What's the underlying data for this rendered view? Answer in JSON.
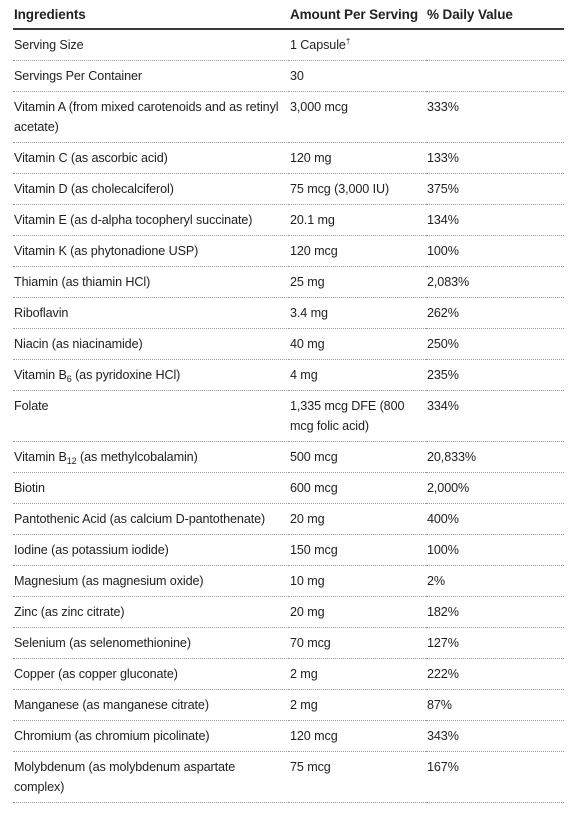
{
  "header": {
    "col_ingredient": "Ingredients",
    "col_amount": "Amount Per Serving",
    "col_dv": "% Daily Value"
  },
  "rows": [
    {
      "pre": "Serving Size",
      "sub": "",
      "post": "",
      "amount": "1 Capsule",
      "sup": "†",
      "dv": ""
    },
    {
      "pre": "Servings Per Container",
      "sub": "",
      "post": "",
      "amount": "30",
      "sup": "",
      "dv": ""
    },
    {
      "pre": "Vitamin A (from mixed carotenoids and as retinyl acetate)",
      "sub": "",
      "post": "",
      "amount": "3,000 mcg",
      "sup": "",
      "dv": "333%"
    },
    {
      "pre": "Vitamin C (as ascorbic acid)",
      "sub": "",
      "post": "",
      "amount": "120 mg",
      "sup": "",
      "dv": "133%"
    },
    {
      "pre": "Vitamin D (as cholecalciferol)",
      "sub": "",
      "post": "",
      "amount": "75 mcg (3,000 IU)",
      "sup": "",
      "dv": "375%"
    },
    {
      "pre": "Vitamin E (as d-alpha tocopheryl succinate)",
      "sub": "",
      "post": "",
      "amount": "20.1 mg",
      "sup": "",
      "dv": "134%"
    },
    {
      "pre": "Vitamin K (as phytonadione USP)",
      "sub": "",
      "post": "",
      "amount": "120 mcg",
      "sup": "",
      "dv": "100%"
    },
    {
      "pre": "Thiamin (as thiamin HCl)",
      "sub": "",
      "post": "",
      "amount": "25 mg",
      "sup": "",
      "dv": "2,083%"
    },
    {
      "pre": "Riboflavin",
      "sub": "",
      "post": "",
      "amount": "3.4 mg",
      "sup": "",
      "dv": "262%"
    },
    {
      "pre": "Niacin (as niacinamide)",
      "sub": "",
      "post": "",
      "amount": "40 mg",
      "sup": "",
      "dv": "250%"
    },
    {
      "pre": "Vitamin B",
      "sub": "6",
      "post": " (as pyridoxine HCl)",
      "amount": "4 mg",
      "sup": "",
      "dv": "235%"
    },
    {
      "pre": "Folate",
      "sub": "",
      "post": "",
      "amount": "1,335 mcg DFE (800 mcg folic acid)",
      "sup": "",
      "dv": "334%"
    },
    {
      "pre": "Vitamin B",
      "sub": "12",
      "post": " (as methylcobalamin)",
      "amount": "500 mcg",
      "sup": "",
      "dv": "20,833%"
    },
    {
      "pre": "Biotin",
      "sub": "",
      "post": "",
      "amount": "600 mcg",
      "sup": "",
      "dv": "2,000%"
    },
    {
      "pre": "Pantothenic Acid (as calcium D-pantothenate)",
      "sub": "",
      "post": "",
      "amount": "20 mg",
      "sup": "",
      "dv": "400%"
    },
    {
      "pre": "Iodine (as potassium iodide)",
      "sub": "",
      "post": "",
      "amount": "150 mcg",
      "sup": "",
      "dv": "100%"
    },
    {
      "pre": "Magnesium (as magnesium oxide)",
      "sub": "",
      "post": "",
      "amount": "10 mg",
      "sup": "",
      "dv": "2%"
    },
    {
      "pre": "Zinc (as zinc citrate)",
      "sub": "",
      "post": "",
      "amount": "20 mg",
      "sup": "",
      "dv": "182%"
    },
    {
      "pre": "Selenium (as selenomethionine)",
      "sub": "",
      "post": "",
      "amount": "70 mcg",
      "sup": "",
      "dv": "127%"
    },
    {
      "pre": "Copper (as copper gluconate)",
      "sub": "",
      "post": "",
      "amount": "2 mg",
      "sup": "",
      "dv": "222%"
    },
    {
      "pre": "Manganese (as manganese citrate)",
      "sub": "",
      "post": "",
      "amount": "2 mg",
      "sup": "",
      "dv": "87%"
    },
    {
      "pre": "Chromium (as chromium picolinate)",
      "sub": "",
      "post": "",
      "amount": "120 mcg",
      "sup": "",
      "dv": "343%"
    },
    {
      "pre": "Molybdenum (as molybdenum aspartate complex)",
      "sub": "",
      "post": "",
      "amount": "75 mcg",
      "sup": "",
      "dv": "167%"
    }
  ]
}
